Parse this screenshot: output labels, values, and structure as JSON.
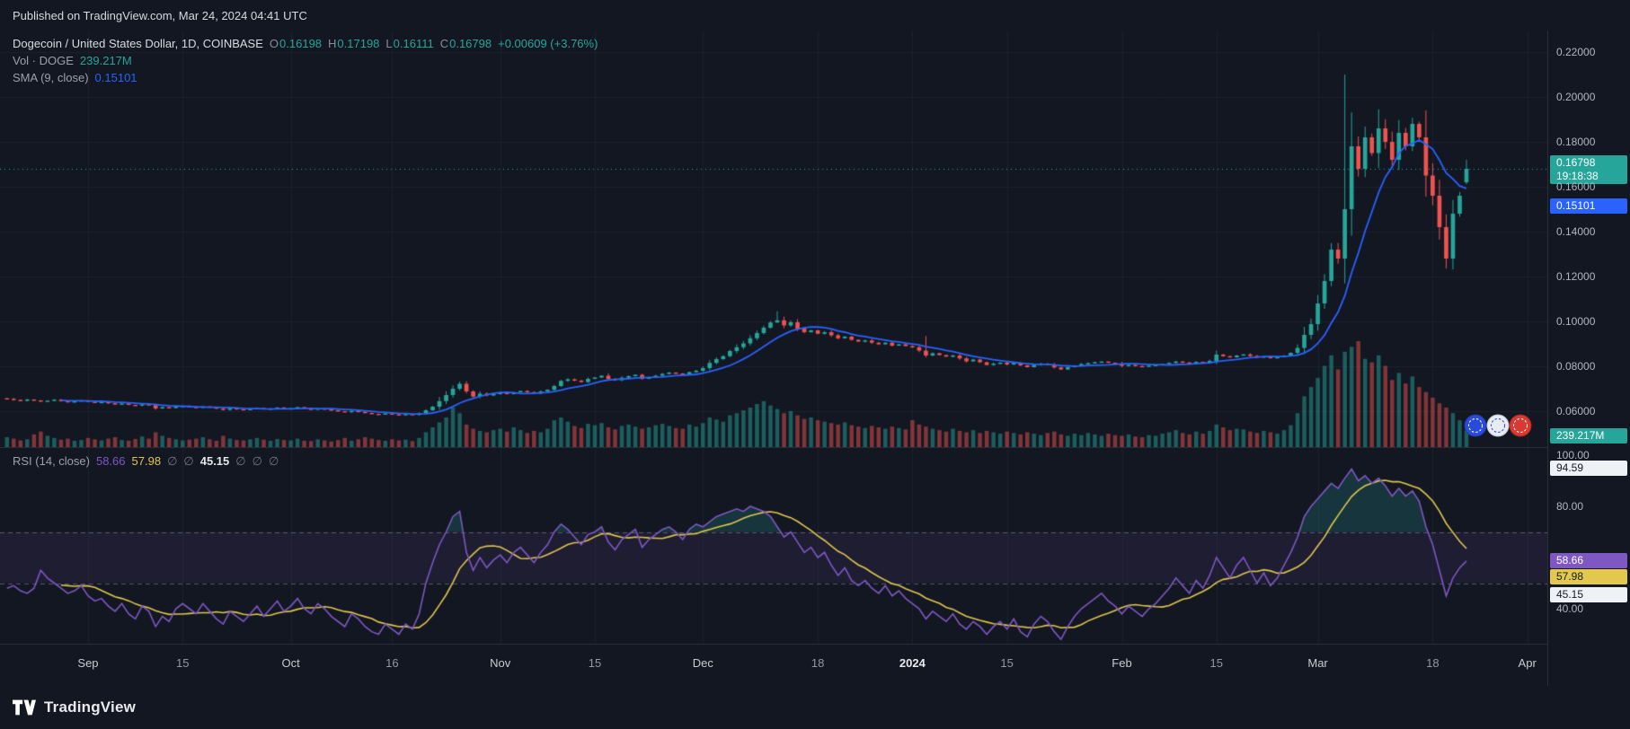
{
  "published": "Published on TradingView.com, Mar 24, 2024 04:41 UTC",
  "legend": {
    "symbol": "Dogecoin / United States Dollar, 1D, COINBASE",
    "o_label": "O",
    "o": "0.16198",
    "h_label": "H",
    "h": "0.17198",
    "l_label": "L",
    "l": "0.16111",
    "c_label": "C",
    "c": "0.16798",
    "change": "+0.00609 (+3.76%)",
    "vol_label": "Vol · DOGE",
    "vol_value": "239.217M",
    "sma_label": "SMA (9, close)",
    "sma_value": "0.15101"
  },
  "rsi_legend": {
    "title": "RSI (14, close)",
    "rsi": "58.66",
    "ma": "57.98",
    "null1": "∅",
    "null2": "∅",
    "mid": "45.15",
    "null3": "∅",
    "null4": "∅",
    "null5": "∅"
  },
  "badges": {
    "close": "0.16798",
    "countdown": "19:18:38",
    "sma": "0.15101",
    "volume": "239.217M",
    "rsi_upper": "94.59",
    "rsi": "58.66",
    "rsi_ma": "57.98",
    "rsi_mid": "45.15"
  },
  "branding": "TradingView",
  "chart_data": {
    "type": "candlestick",
    "title": "Dogecoin / United States Dollar, 1D, COINBASE",
    "interval": "1D",
    "total_slots": 229,
    "price_range": {
      "top": 0.2296,
      "bottom": 0.044
    },
    "colors": {
      "bg": "#131722",
      "grid": "#1e222d",
      "up": "#26a69a",
      "down": "#ef5350",
      "axis_text": "#b2b5be",
      "sep": "#2a2e39"
    },
    "price": {
      "last_ohlc": {
        "o": 0.16198,
        "h": 0.17198,
        "l": 0.16111,
        "c": 0.16798
      },
      "spikes": [
        {
          "day": 114,
          "high": 0.1045
        },
        {
          "day": 136,
          "high": 0.0935
        },
        {
          "day": 198,
          "high": 0.21
        }
      ],
      "close": [
        0.0655,
        0.065,
        0.0646,
        0.0652,
        0.0648,
        0.0643,
        0.0647,
        0.0651,
        0.0645,
        0.064,
        0.0644,
        0.0648,
        0.0642,
        0.0638,
        0.0641,
        0.0635,
        0.063,
        0.0634,
        0.0628,
        0.0625,
        0.0631,
        0.0627,
        0.0612,
        0.0618,
        0.0614,
        0.062,
        0.0623,
        0.0619,
        0.0615,
        0.0621,
        0.0617,
        0.0611,
        0.0606,
        0.0613,
        0.0609,
        0.0605,
        0.061,
        0.0614,
        0.0608,
        0.0612,
        0.0616,
        0.061,
        0.0613,
        0.0618,
        0.0611,
        0.0607,
        0.0612,
        0.0608,
        0.0604,
        0.06,
        0.0596,
        0.0601,
        0.0597,
        0.0592,
        0.0588,
        0.0585,
        0.059,
        0.0586,
        0.0582,
        0.0587,
        0.0583,
        0.0591,
        0.0604,
        0.062,
        0.0645,
        0.0672,
        0.07,
        0.0722,
        0.0688,
        0.0665,
        0.0678,
        0.067,
        0.0676,
        0.0682,
        0.0676,
        0.0684,
        0.069,
        0.0685,
        0.0679,
        0.0688,
        0.0695,
        0.0712,
        0.0735,
        0.0742,
        0.0736,
        0.073,
        0.0744,
        0.075,
        0.0758,
        0.0744,
        0.0738,
        0.0749,
        0.0756,
        0.0762,
        0.0744,
        0.0752,
        0.0758,
        0.0766,
        0.0772,
        0.0768,
        0.0762,
        0.0774,
        0.078,
        0.0792,
        0.0815,
        0.0832,
        0.0845,
        0.0868,
        0.0885,
        0.0902,
        0.0925,
        0.0948,
        0.0972,
        0.0995,
        0.1005,
        0.0982,
        0.0996,
        0.0968,
        0.0952,
        0.096,
        0.0945,
        0.0952,
        0.0938,
        0.0925,
        0.0932,
        0.0918,
        0.091,
        0.0915,
        0.0905,
        0.0898,
        0.0905,
        0.0892,
        0.0898,
        0.089,
        0.0885,
        0.087,
        0.0848,
        0.0858,
        0.085,
        0.0843,
        0.0848,
        0.0835,
        0.0822,
        0.083,
        0.0818,
        0.0806,
        0.0812,
        0.0816,
        0.0808,
        0.0815,
        0.0804,
        0.0796,
        0.0806,
        0.0812,
        0.0808,
        0.0795,
        0.0786,
        0.0796,
        0.0804,
        0.081,
        0.0814,
        0.0818,
        0.0821,
        0.0816,
        0.0812,
        0.0802,
        0.0806,
        0.0801,
        0.0799,
        0.0803,
        0.0806,
        0.081,
        0.0815,
        0.0821,
        0.0817,
        0.0813,
        0.082,
        0.0816,
        0.0824,
        0.0852,
        0.0845,
        0.084,
        0.0848,
        0.0853,
        0.0846,
        0.0839,
        0.0844,
        0.0836,
        0.0841,
        0.0848,
        0.086,
        0.0882,
        0.094,
        0.0988,
        0.108,
        0.118,
        0.132,
        0.128,
        0.15,
        0.178,
        0.168,
        0.182,
        0.175,
        0.186,
        0.18,
        0.172,
        0.184,
        0.178,
        0.188,
        0.182,
        0.165,
        0.156,
        0.142,
        0.128,
        0.148,
        0.156,
        0.16798
      ]
    },
    "sma": {
      "period": 9,
      "last": 0.15101,
      "color": "#2962ff"
    },
    "volume": {
      "last_label": "239.217M",
      "up_color": "rgba(38,166,154,0.5)",
      "down_color": "rgba(239,83,80,0.5)",
      "values": [
        140,
        120,
        95,
        110,
        180,
        220,
        160,
        130,
        105,
        120,
        90,
        100,
        130,
        110,
        95,
        120,
        140,
        100,
        90,
        115,
        150,
        120,
        210,
        160,
        130,
        110,
        95,
        105,
        120,
        140,
        110,
        90,
        160,
        120,
        100,
        95,
        110,
        130,
        105,
        90,
        115,
        100,
        95,
        120,
        90,
        85,
        110,
        95,
        80,
        100,
        130,
        90,
        110,
        140,
        120,
        100,
        90,
        110,
        95,
        105,
        85,
        130,
        210,
        280,
        350,
        420,
        560,
        480,
        320,
        260,
        230,
        210,
        240,
        260,
        220,
        280,
        240,
        200,
        230,
        210,
        260,
        380,
        420,
        360,
        300,
        270,
        330,
        310,
        340,
        280,
        250,
        300,
        320,
        290,
        260,
        280,
        310,
        330,
        300,
        270,
        260,
        320,
        290,
        340,
        420,
        390,
        360,
        450,
        480,
        520,
        560,
        610,
        650,
        590,
        540,
        480,
        510,
        450,
        400,
        420,
        380,
        360,
        340,
        320,
        350,
        310,
        290,
        270,
        300,
        280,
        260,
        290,
        270,
        250,
        380,
        320,
        290,
        260,
        240,
        220,
        260,
        230,
        210,
        240,
        200,
        230,
        210,
        190,
        220,
        200,
        180,
        210,
        190,
        170,
        200,
        220,
        180,
        160,
        190,
        170,
        200,
        180,
        160,
        190,
        170,
        160,
        180,
        150,
        140,
        170,
        160,
        190,
        210,
        240,
        200,
        180,
        220,
        190,
        230,
        320,
        280,
        240,
        260,
        250,
        220,
        200,
        230,
        210,
        190,
        240,
        310,
        480,
        720,
        850,
        980,
        1150,
        1300,
        1100,
        1350,
        1420,
        1500,
        1250,
        1200,
        1300,
        1150,
        950,
        1050,
        900,
        1000,
        850,
        780,
        700,
        620,
        560,
        480,
        380,
        239
      ]
    },
    "rsi": {
      "period": 14,
      "ma_period": 9,
      "last": 58.66,
      "ma_last": 57.98,
      "mid_last": 45.15,
      "upper_last": 94.59,
      "band": [
        50,
        70
      ],
      "color": "#7e57c2",
      "ma_color": "#dfc64f",
      "values": [
        48,
        49,
        47,
        46,
        48,
        55,
        52,
        50,
        48,
        46,
        47,
        49,
        45,
        43,
        44,
        41,
        39,
        42,
        38,
        36,
        41,
        39,
        33,
        37,
        35,
        40,
        42,
        40,
        38,
        42,
        39,
        36,
        34,
        39,
        37,
        35,
        38,
        41,
        37,
        40,
        43,
        39,
        41,
        44,
        40,
        38,
        42,
        40,
        37,
        35,
        33,
        38,
        36,
        33,
        31,
        30,
        34,
        32,
        30,
        34,
        32,
        38,
        50,
        58,
        65,
        70,
        76,
        78,
        62,
        55,
        60,
        56,
        59,
        61,
        58,
        62,
        64,
        61,
        58,
        62,
        65,
        70,
        73,
        71,
        68,
        65,
        69,
        70,
        72,
        66,
        63,
        67,
        69,
        71,
        64,
        67,
        69,
        71,
        72,
        70,
        67,
        71,
        73,
        72,
        74,
        76,
        77,
        78,
        79,
        78,
        80,
        79,
        78,
        76,
        72,
        68,
        70,
        66,
        62,
        64,
        60,
        62,
        57,
        53,
        56,
        51,
        49,
        51,
        48,
        46,
        49,
        45,
        47,
        44,
        42,
        40,
        36,
        39,
        37,
        35,
        38,
        34,
        32,
        35,
        33,
        30,
        33,
        35,
        32,
        36,
        31,
        29,
        34,
        37,
        35,
        31,
        28,
        33,
        37,
        40,
        42,
        44,
        46,
        43,
        41,
        38,
        41,
        39,
        37,
        40,
        42,
        45,
        48,
        52,
        49,
        46,
        51,
        48,
        53,
        60,
        56,
        52,
        57,
        60,
        55,
        50,
        54,
        49,
        52,
        57,
        62,
        68,
        76,
        80,
        83,
        86,
        89,
        87,
        91,
        94.59,
        90,
        92,
        89,
        91,
        88,
        84,
        87,
        84,
        86,
        82,
        72,
        65,
        55,
        45,
        52,
        56,
        58.66
      ]
    },
    "price_axis": {
      "labels": [
        "0.22000",
        "0.20000",
        "0.18000",
        "0.16000",
        "0.14000",
        "0.12000",
        "0.10000",
        "0.08000",
        "0.06000"
      ],
      "values": [
        0.22,
        0.2,
        0.18,
        0.16,
        0.14,
        0.12,
        0.1,
        0.08,
        0.06
      ]
    },
    "rsi_axis": {
      "labels": [
        "100.00",
        "80.00",
        "40.00"
      ],
      "values": [
        100,
        80,
        40
      ]
    },
    "time_axis": [
      {
        "label": "Sep",
        "day": 12,
        "major": true
      },
      {
        "label": "15",
        "day": 26
      },
      {
        "label": "Oct",
        "day": 42,
        "major": true
      },
      {
        "label": "16",
        "day": 57
      },
      {
        "label": "Nov",
        "day": 73,
        "major": true
      },
      {
        "label": "15",
        "day": 87
      },
      {
        "label": "Dec",
        "day": 103,
        "major": true
      },
      {
        "label": "18",
        "day": 120
      },
      {
        "label": "2024",
        "day": 134,
        "major": true,
        "bold": true
      },
      {
        "label": "15",
        "day": 148
      },
      {
        "label": "Feb",
        "day": 165,
        "major": true
      },
      {
        "label": "15",
        "day": 179
      },
      {
        "label": "Mar",
        "day": 194,
        "major": true
      },
      {
        "label": "18",
        "day": 211
      },
      {
        "label": "Apr",
        "day": 225,
        "major": true
      }
    ]
  }
}
